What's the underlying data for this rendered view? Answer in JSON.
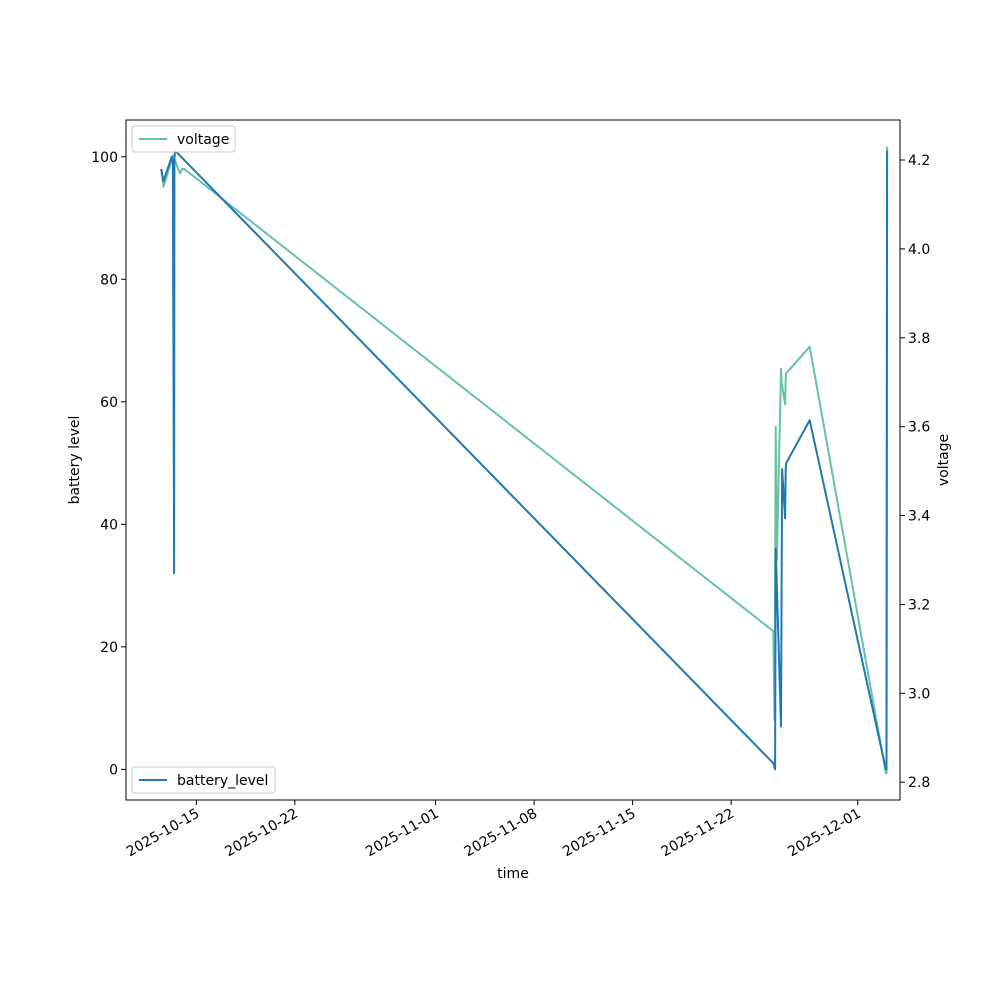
{
  "chart_data": {
    "type": "line",
    "title": "",
    "xlabel": "time",
    "ylabel": "battery level",
    "y2label": "voltage",
    "xlim": [
      "2025-10-10",
      "2025-12-04"
    ],
    "ylim": [
      -5,
      106
    ],
    "y2lim": [
      2.76,
      4.29
    ],
    "x_ticks": [
      "2025-10-15",
      "2025-10-22",
      "2025-11-01",
      "2025-11-08",
      "2025-11-15",
      "2025-11-22",
      "2025-12-01"
    ],
    "y_ticks": [
      0,
      20,
      40,
      60,
      80,
      100
    ],
    "y2_ticks": [
      2.8,
      3.0,
      3.2,
      3.4,
      3.6,
      3.8,
      4.0,
      4.2
    ],
    "y2_tick_labels": [
      "2.8",
      "3.0",
      "3.2",
      "3.4",
      "3.6",
      "3.8",
      "4.0",
      "4.2"
    ],
    "grid": false,
    "series": [
      {
        "name": "battery_level",
        "axis": "left",
        "color": "#1f77b4",
        "legend_position": "lower-left",
        "x": [
          "2025-10-12T12:00",
          "2025-10-12T14:00",
          "2025-10-12T16:00",
          "2025-10-13T06:00",
          "2025-10-13T08:00",
          "2025-10-13T09:30",
          "2025-10-13T10:00",
          "2025-10-13T10:30",
          "2025-10-13T11:00",
          "2025-10-13T11:30",
          "2025-11-25T00:00",
          "2025-11-25T03:00",
          "2025-11-25T04:00",
          "2025-11-25T05:00",
          "2025-11-25T13:00",
          "2025-11-25T15:00",
          "2025-11-25T20:00",
          "2025-11-25T21:00",
          "2025-11-25T22:00",
          "2025-11-27T14:00",
          "2025-12-03T00:00",
          "2025-12-03T01:00",
          "2025-12-03T02:00"
        ],
        "y": [
          98,
          97,
          96,
          100,
          99,
          52,
          32,
          100,
          100,
          101,
          1,
          0,
          36,
          33,
          7,
          49,
          41,
          49,
          50,
          57,
          0,
          0,
          101
        ]
      },
      {
        "name": "voltage",
        "axis": "right",
        "color": "#66c2a5",
        "legend_position": "upper-left",
        "x": [
          "2025-10-12T12:00",
          "2025-10-12T16:00",
          "2025-10-13T06:00",
          "2025-10-13T08:00",
          "2025-10-13T09:30",
          "2025-10-13T10:00",
          "2025-10-13T11:00",
          "2025-10-13T20:00",
          "2025-10-14T00:00",
          "2025-10-14T03:00",
          "2025-11-25T00:00",
          "2025-11-25T02:00",
          "2025-11-25T04:00",
          "2025-11-25T06:00",
          "2025-11-25T13:00",
          "2025-11-25T14:00",
          "2025-11-25T20:00",
          "2025-11-25T21:00",
          "2025-11-25T22:00",
          "2025-11-27T14:00",
          "2025-12-03T00:00",
          "2025-12-03T01:00",
          "2025-12-03T02:00"
        ],
        "y": [
          4.18,
          4.14,
          4.2,
          4.21,
          3.52,
          4.2,
          4.2,
          4.17,
          4.18,
          4.18,
          3.14,
          2.94,
          3.6,
          3.3,
          3.73,
          3.7,
          3.65,
          3.71,
          3.72,
          3.78,
          2.82,
          2.82,
          4.23
        ]
      }
    ]
  }
}
